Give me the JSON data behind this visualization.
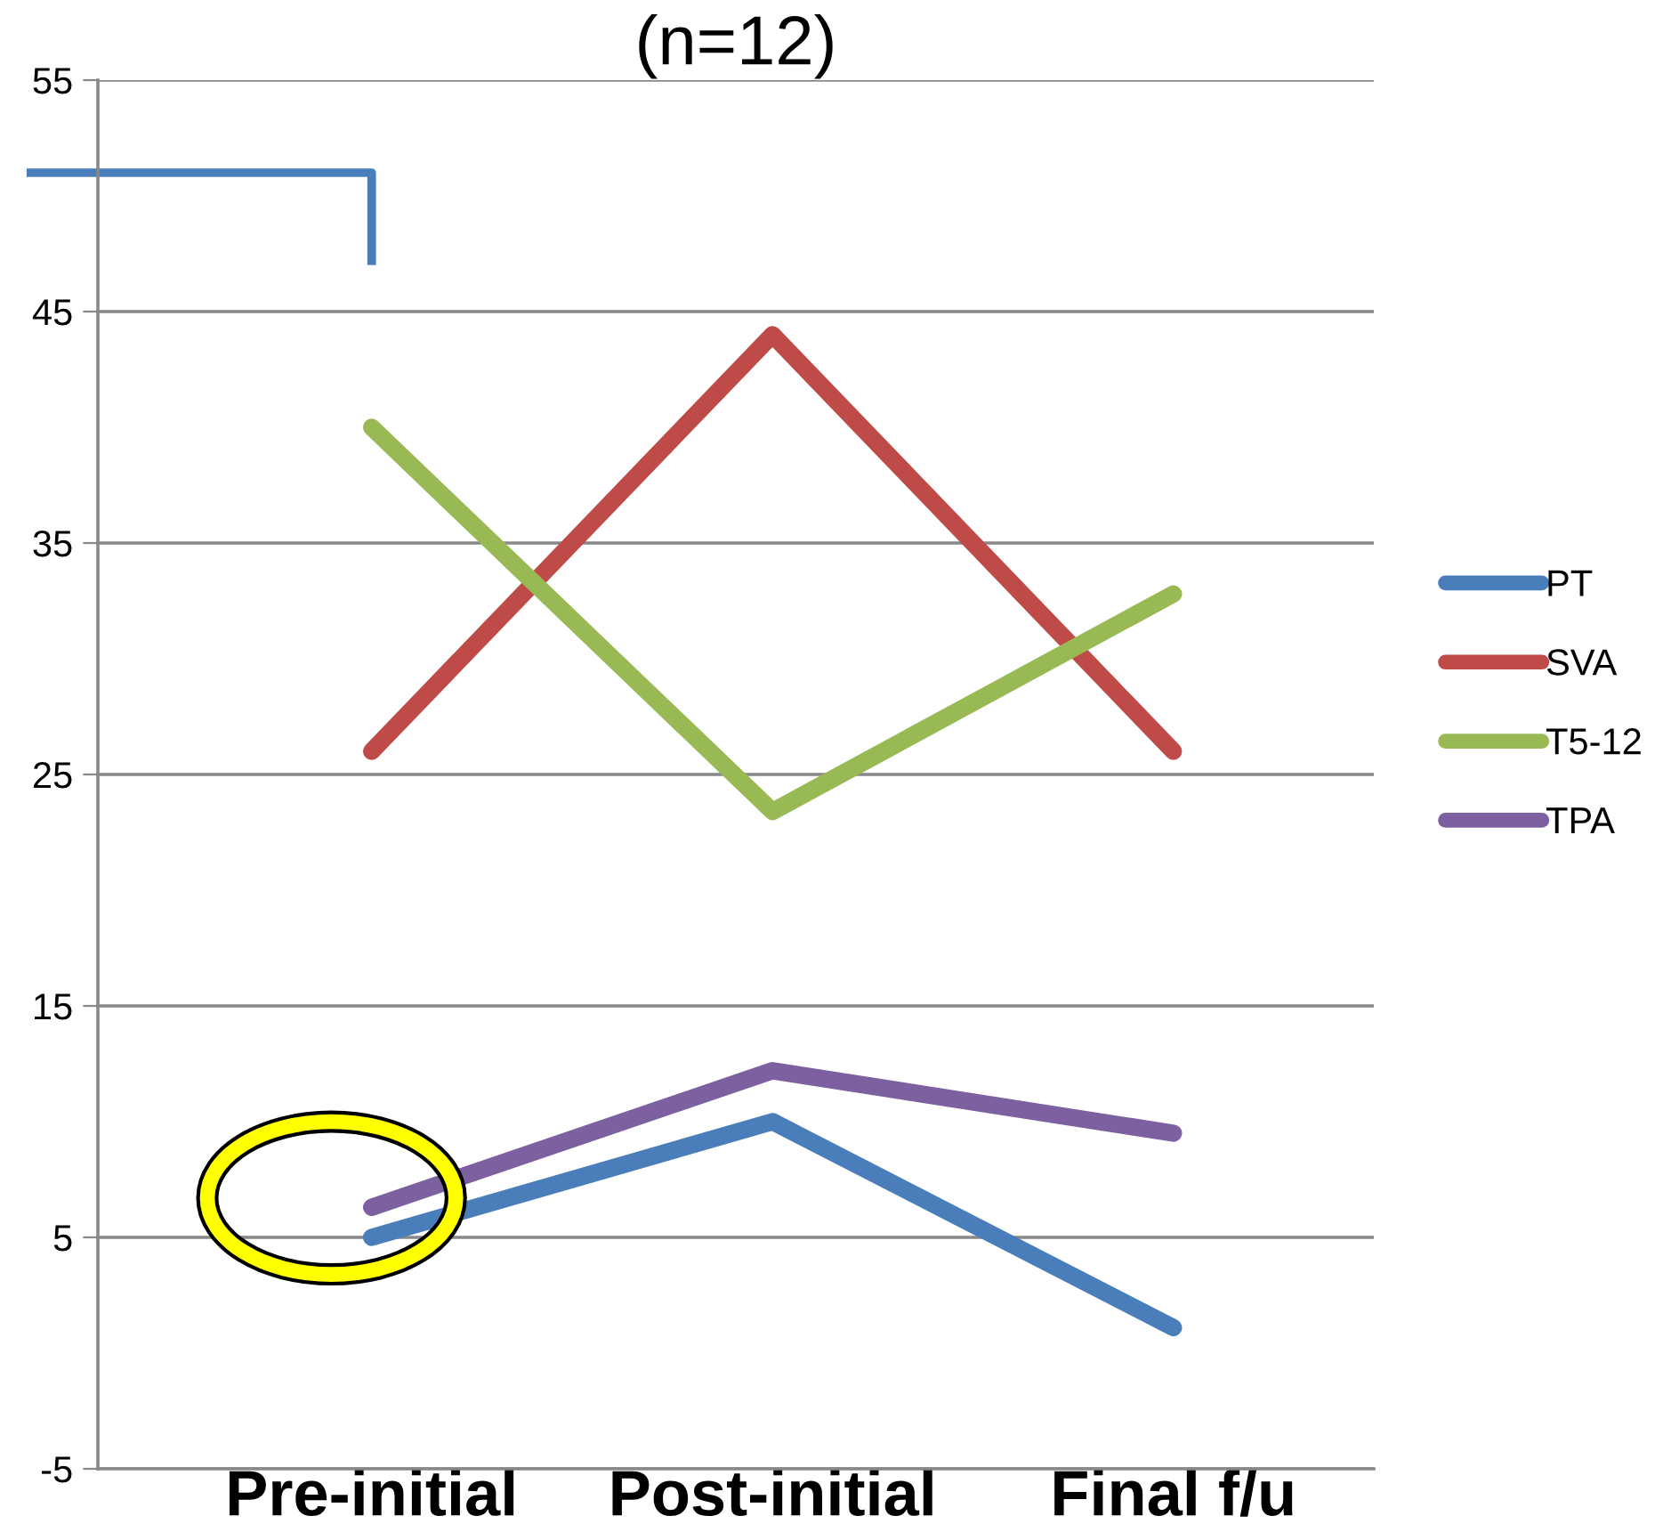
{
  "chart_data": {
    "type": "line",
    "title": "(n=12)",
    "categories": [
      "Pre-initial",
      "Post-initial",
      "Final f/u"
    ],
    "series": [
      {
        "name": "PT",
        "color": "#4a7ebb",
        "values": [
          5,
          10,
          1.1
        ]
      },
      {
        "name": "SVA",
        "color": "#be4b48",
        "values": [
          26,
          44,
          26
        ]
      },
      {
        "name": "T5-12",
        "color": "#98b954",
        "values": [
          40,
          23.4,
          32.8
        ]
      },
      {
        "name": "TPA",
        "color": "#7d60a0",
        "values": [
          6.3,
          12.2,
          9.5
        ]
      }
    ],
    "ylim": [
      -5,
      55
    ],
    "yticks": [
      -5,
      5,
      15,
      25,
      35,
      45,
      55
    ],
    "grid": "y",
    "legend": "right",
    "marker": "none",
    "line_style": "solid"
  }
}
